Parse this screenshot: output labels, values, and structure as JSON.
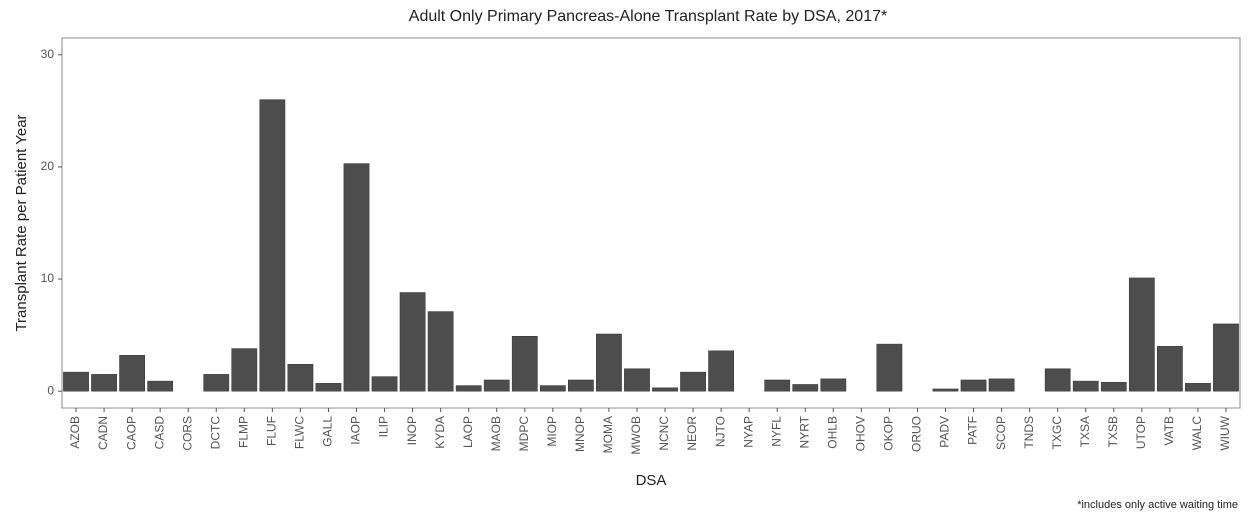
{
  "chart_data": {
    "type": "bar",
    "title": "Adult Only Primary Pancreas-Alone Transplant Rate by DSA, 2017*",
    "x_label": "DSA",
    "y_label": "Transplant Rate per Patient Year",
    "footnote": "*includes only active waiting time",
    "categories": [
      "AZOB",
      "CADN",
      "CAOP",
      "CASD",
      "CORS",
      "DCTC",
      "FLMP",
      "FLUF",
      "FLWC",
      "GALL",
      "IAOP",
      "ILIP",
      "INOP",
      "KYDA",
      "LAOP",
      "MAOB",
      "MDPC",
      "MIOP",
      "MNOP",
      "MOMA",
      "MWOB",
      "NCNC",
      "NEOR",
      "NJTO",
      "NYAP",
      "NYFL",
      "NYRT",
      "OHLB",
      "OHOV",
      "OKOP",
      "ORUO",
      "PADV",
      "PATF",
      "SCOP",
      "TNDS",
      "TXGC",
      "TXSA",
      "TXSB",
      "UTOP",
      "VATB",
      "WALC",
      "WIUW"
    ],
    "values": [
      1.7,
      1.5,
      3.2,
      0.9,
      0,
      1.5,
      3.8,
      26.0,
      2.4,
      0.7,
      20.3,
      1.3,
      8.8,
      7.1,
      0.5,
      1.0,
      4.9,
      0.5,
      1.0,
      5.1,
      2.0,
      0.3,
      1.7,
      3.6,
      0,
      1.0,
      0.6,
      1.1,
      0,
      4.2,
      0,
      0.2,
      1.0,
      1.1,
      0,
      2.0,
      0.9,
      0.8,
      10.1,
      4.0,
      0.7,
      6.0
    ],
    "color": "#4d4d4d",
    "ylim": [
      -1.5,
      31.5
    ],
    "yticks": [
      0,
      10,
      20,
      30
    ],
    "grid": false
  }
}
